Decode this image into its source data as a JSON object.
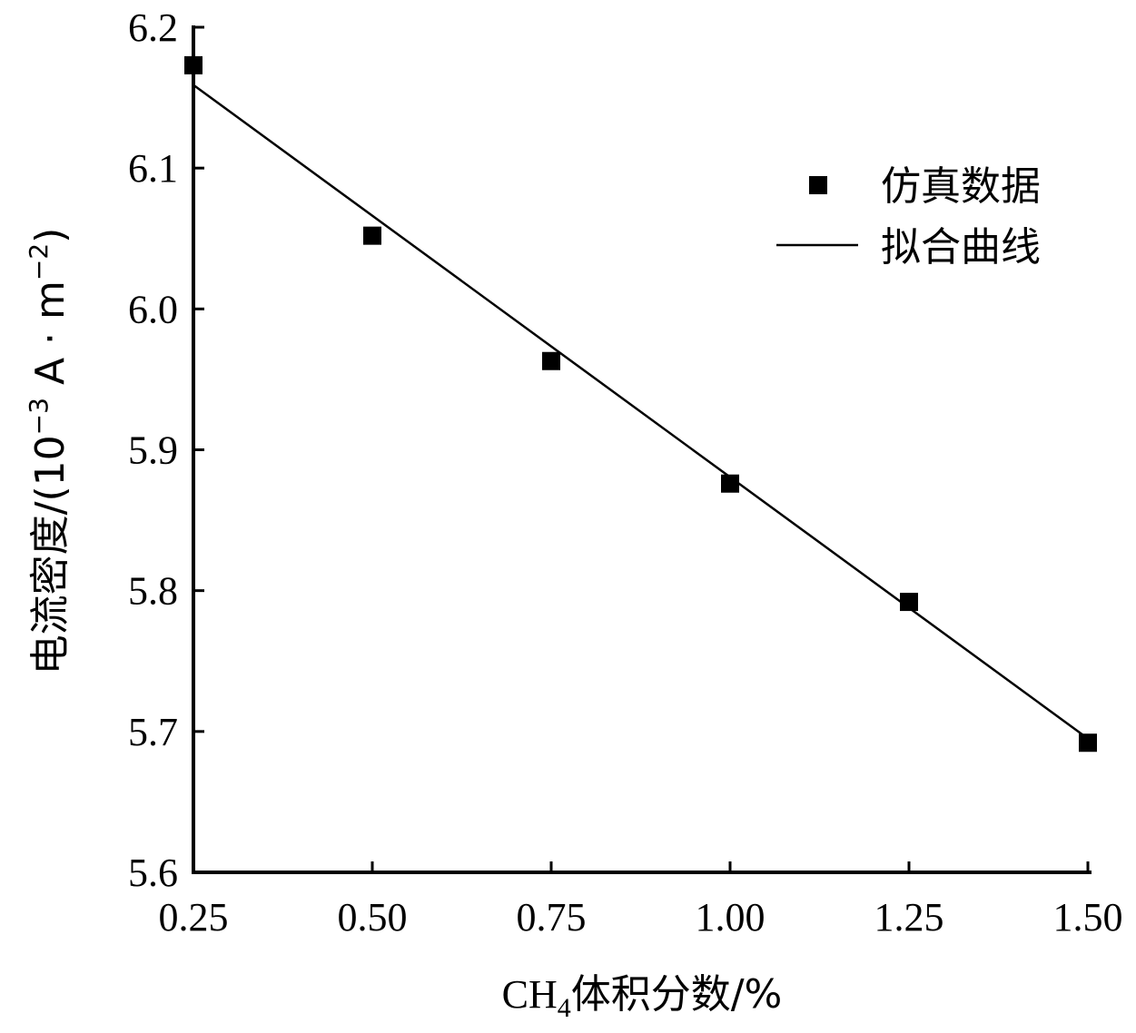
{
  "chart_data": {
    "type": "scatter",
    "title": "",
    "xlabel": "CH4体积分数/%",
    "xlabel_parts": {
      "main": "CH",
      "sub": "4",
      "rest": "体积分数/%"
    },
    "ylabel": "电流密度/(10−3 A · m−2)",
    "ylabel_parts": {
      "main": "电流密度/(10",
      "sup1": "−3",
      "mid": " A · m",
      "sup2": "−2",
      "end": ")"
    },
    "xlim": [
      0.25,
      1.5
    ],
    "ylim": [
      5.6,
      6.2
    ],
    "x_ticks": [
      0.25,
      0.5,
      0.75,
      1.0,
      1.25,
      1.5
    ],
    "x_tick_labels": [
      "0.25",
      "0.50",
      "0.75",
      "1.00",
      "1.25",
      "1.50"
    ],
    "y_ticks": [
      5.6,
      5.7,
      5.8,
      5.9,
      6.0,
      6.1,
      6.2
    ],
    "y_tick_labels": [
      "5.6",
      "5.7",
      "5.8",
      "5.9",
      "6.0",
      "6.1",
      "6.2"
    ],
    "grid": false,
    "legend_position": "top-right",
    "series": [
      {
        "name": "仿真数据",
        "kind": "markers",
        "marker": "square",
        "color": "#000000",
        "points": [
          {
            "x": 0.25,
            "y": 6.173
          },
          {
            "x": 0.5,
            "y": 6.052
          },
          {
            "x": 0.75,
            "y": 5.963
          },
          {
            "x": 1.0,
            "y": 5.876
          },
          {
            "x": 1.25,
            "y": 5.792
          },
          {
            "x": 1.5,
            "y": 5.692
          }
        ]
      },
      {
        "name": "拟合曲线",
        "kind": "line",
        "color": "#000000",
        "points": [
          {
            "x": 0.25,
            "y": 6.159
          },
          {
            "x": 1.5,
            "y": 5.695
          }
        ]
      }
    ]
  }
}
